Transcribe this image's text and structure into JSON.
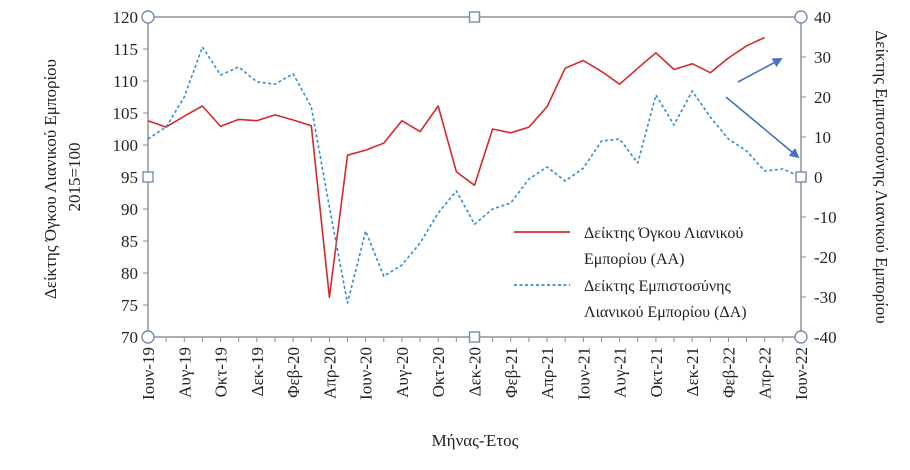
{
  "chart_data": {
    "type": "line",
    "title": "",
    "xlabel": "Μήνας-Έτος",
    "ylabel_left": "Δείκτης Όγκου Λιανικού Εμπορίου 2015=100",
    "ylabel_left_lines": [
      "Δείκτης Όγκου Λιανικού Εμπορίου",
      "2015=100"
    ],
    "ylabel_right": "Δείκτης Εμπιστοσύνης Λιανικού Εμπορίου",
    "ylim_left": [
      70,
      120
    ],
    "ylim_right": [
      -40,
      40
    ],
    "yticks_left": [
      "120",
      "115",
      "110",
      "105",
      "100",
      "95",
      "90",
      "85",
      "80",
      "75",
      "70"
    ],
    "yticks_right": [
      "40",
      "30",
      "20",
      "10",
      "0",
      "-10",
      "-20",
      "-30",
      "-40"
    ],
    "x": [
      "Ιουν-19",
      "Ιουλ-19",
      "Αυγ-19",
      "Σεπ-19",
      "Οκτ-19",
      "Νοε-19",
      "Δεκ-19",
      "Ιαν-20",
      "Φεβ-20",
      "Μαρ-20",
      "Απρ-20",
      "Μαϊ-20",
      "Ιουν-20",
      "Ιουλ-20",
      "Αυγ-20",
      "Σεπ-20",
      "Οκτ-20",
      "Νοε-20",
      "Δεκ-20",
      "Ιαν-21",
      "Φεβ-21",
      "Μαρ-21",
      "Απρ-21",
      "Μαϊ-21",
      "Ιουν-21",
      "Ιουλ-21",
      "Αυγ-21",
      "Σεπ-21",
      "Οκτ-21",
      "Νοε-21",
      "Δεκ-21",
      "Ιαν-22",
      "Φεβ-22",
      "Μαρ-22",
      "Απρ-22",
      "Μαϊ-22",
      "Ιουν-22"
    ],
    "x_tick_labels": [
      "Ιουν-19",
      "Αυγ-19",
      "Οκτ-19",
      "Δεκ-19",
      "Φεβ-20",
      "Απρ-20",
      "Ιουν-20",
      "Αυγ-20",
      "Οκτ-20",
      "Δεκ-20",
      "Φεβ-21",
      "Απρ-21",
      "Ιουν-21",
      "Αυγ-21",
      "Οκτ-21",
      "Δεκ-21",
      "Φεβ-22",
      "Απρ-22",
      "Ιουν-22"
    ],
    "legend_position": "right-bottom inside plot",
    "series": [
      {
        "name": "Δείκτης Όγκου Λιανικού Εμπορίου (ΑΑ)",
        "legend_lines": [
          "Δείκτης Όγκου Λιανικού",
          "Εμπορίου (ΑΑ)"
        ],
        "axis": "left",
        "style": "solid",
        "color": "#d42a2a",
        "values": [
          103.8,
          102.8,
          104.5,
          106.1,
          102.9,
          104.0,
          103.8,
          104.7,
          103.9,
          103.0,
          76.2,
          98.4,
          99.2,
          100.3,
          103.8,
          102.1,
          106.1,
          95.8,
          93.7,
          102.5,
          101.9,
          102.8,
          106.0,
          112.0,
          113.2,
          111.5,
          109.5,
          112.0,
          114.4,
          111.8,
          112.7,
          111.3,
          113.6,
          115.5,
          116.8,
          null,
          null
        ]
      },
      {
        "name": "Δείκτης Εμπιστοσύνης Λιανικού Εμπορίου (ΔΑ)",
        "legend_lines": [
          "Δείκτης Εμπιστοσύνης",
          "Λιανικού Εμπορίου (ΔΑ)"
        ],
        "axis": "right",
        "style": "dotted",
        "color": "#2e8fd4",
        "values": [
          9.5,
          12.5,
          20.0,
          32.5,
          25.5,
          27.5,
          23.8,
          23.2,
          25.8,
          17.5,
          -7.5,
          -31.5,
          -13.5,
          -24.8,
          -22.0,
          -16.5,
          -9.0,
          -3.5,
          -11.8,
          -8.0,
          -6.5,
          -0.5,
          2.5,
          -1.0,
          2.2,
          9.0,
          9.5,
          3.5,
          20.5,
          13.0,
          21.5,
          15.0,
          9.5,
          6.5,
          1.5,
          2.0,
          0.0
        ]
      }
    ],
    "annotations": [
      {
        "type": "arrow",
        "color": "#4472c4",
        "direction": "up-right"
      },
      {
        "type": "arrow",
        "color": "#4472c4",
        "direction": "down-right"
      }
    ],
    "grid": false
  }
}
